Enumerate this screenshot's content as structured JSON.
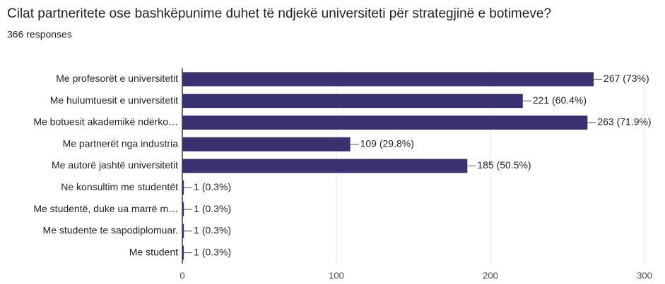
{
  "chart_data": {
    "type": "bar",
    "orientation": "horizontal",
    "title": "Cilat partneritete ose bashkëpunime duhet të ndjekë universiteti për strategjinë e botimeve?",
    "subtitle": "366 responses",
    "categories": [
      "Me profesorët e universitetit",
      "Me hulumtuesit e universitetit",
      "Me botuesit akademikë ndërko…",
      "Me partnerët nga industria",
      "Me autorë jashtë universitetit",
      "Ne konsultim me studentët",
      "Me studentë, duke ua marrë m…",
      "Me studente te sapodiplomuar.",
      "Me student"
    ],
    "values": [
      267,
      221,
      263,
      109,
      185,
      1,
      1,
      1,
      1
    ],
    "value_labels": [
      "267 (73%)",
      "221 (60.4%)",
      "263 (71.9%)",
      "109 (29.8%)",
      "185 (50.5%)",
      "1 (0.3%)",
      "1 (0.3%)",
      "1 (0.3%)",
      "1 (0.3%)"
    ],
    "color": "#3a3270",
    "xlim": [
      0,
      300
    ],
    "xticks": [
      0,
      100,
      200,
      300
    ],
    "grid": true
  }
}
